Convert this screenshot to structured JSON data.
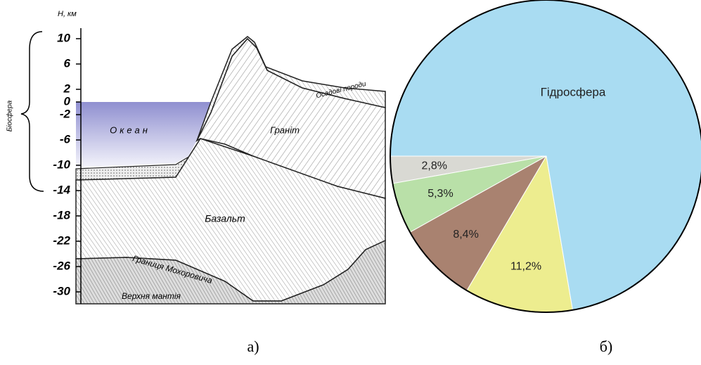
{
  "diagram": {
    "axis_label": "H, км",
    "side_label": "Біосфера",
    "ylim": [
      -30,
      10
    ],
    "yticks": [
      10,
      6,
      2,
      0,
      -2,
      -6,
      -10,
      -14,
      -18,
      -22,
      -26,
      -30
    ],
    "labels": {
      "ocean": "Океан",
      "granite": "Граніт",
      "sediments": "Осадові породи",
      "basalt": "Базальт",
      "moho": "Границя Мохоровичa",
      "mantle": "Верхня мантія"
    },
    "caption": "а)"
  },
  "chart_data": {
    "type": "pie",
    "categories": [
      "Гідросфера",
      null,
      null,
      null,
      null
    ],
    "values": [
      72.3,
      11.2,
      8.4,
      5.3,
      2.8
    ],
    "value_labels": [
      null,
      "11,2%",
      "8,4%",
      "5,3%",
      "2,8%"
    ],
    "colors": [
      "#a9dcf2",
      "#eded8f",
      "#a98270",
      "#b9e0a8",
      "#d9d9d3"
    ],
    "caption": "б)"
  }
}
